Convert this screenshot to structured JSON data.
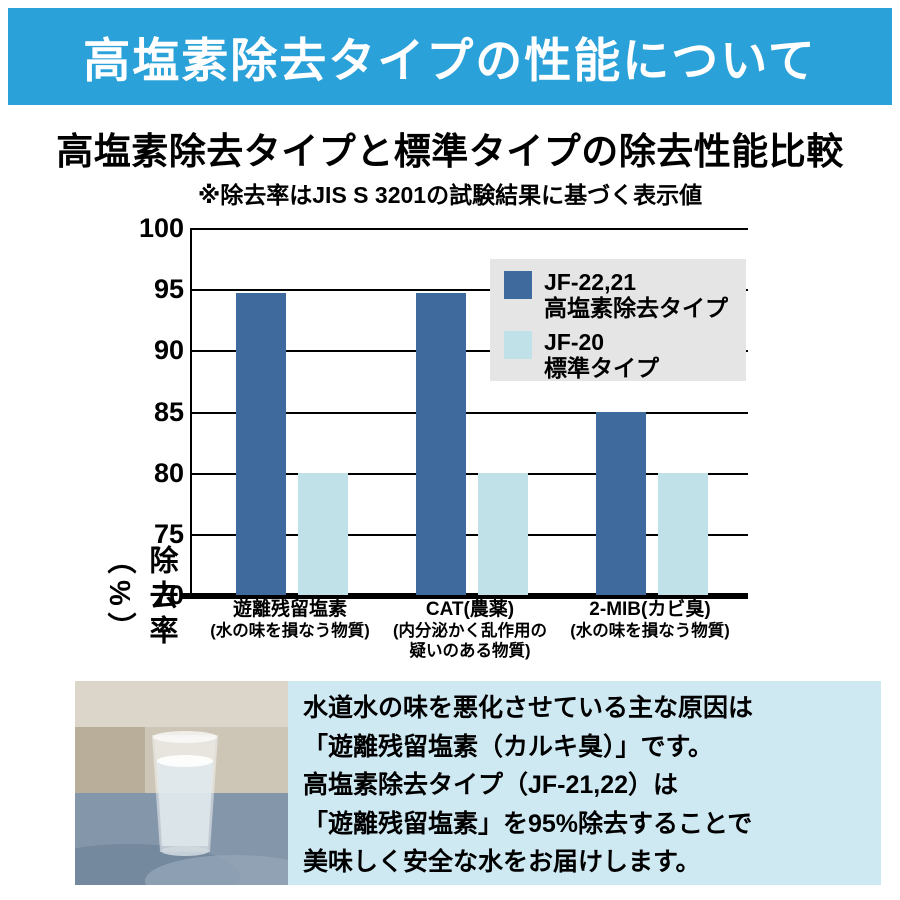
{
  "banner": {
    "title": "高塩素除去タイプの性能について"
  },
  "heading": {
    "title": "高塩素除去タイプと標準タイプの除去性能比較",
    "note": "※除去率はJIS S 3201の試験結果に基づく表示値"
  },
  "chart_data": {
    "type": "bar",
    "categories": [
      "遊離残留塩素",
      "CAT(農薬)",
      "2-MIB(カビ臭)"
    ],
    "category_subtitles": [
      [
        "(水の味を損なう物質)"
      ],
      [
        "(内分泌かく乱作用の",
        "疑いのある物質)"
      ],
      [
        "(水の味を損なう物質)"
      ]
    ],
    "series": [
      {
        "name": "JF-22,21 高塩素除去タイプ",
        "label1": "JF-22,21",
        "label2": "高塩素除去タイプ",
        "values": [
          94.7,
          94.7,
          85
        ],
        "color": "#3e6a9e"
      },
      {
        "name": "JF-20 標準タイプ",
        "label1": "JF-20",
        "label2": "標準タイプ",
        "values": [
          80,
          80,
          80
        ],
        "color": "#bfe1e7"
      }
    ],
    "ylabel": "除去率（%）",
    "xlabel": "",
    "ylim": [
      70,
      100
    ],
    "yticks": [
      100,
      95,
      90,
      85,
      80,
      75,
      70
    ],
    "grid": true,
    "legend_position": "top-right"
  },
  "info": {
    "lines": [
      "水道水の味を悪化させている主な原因は",
      "「遊離残留塩素（カルキ臭）」です。",
      "高塩素除去タイプ（JF-21,22）は",
      "「遊離残留塩素」を95%除去することで",
      "美味しく安全な水をお届けします。"
    ],
    "photo_name": "glass-of-water-photo"
  },
  "colors": {
    "banner_bg": "#2ba1d9",
    "info_bg": "#cfe9f3",
    "legend_bg": "#e5e5e5",
    "bar_dark": "#3e6a9e",
    "bar_light": "#bfe1e7"
  }
}
